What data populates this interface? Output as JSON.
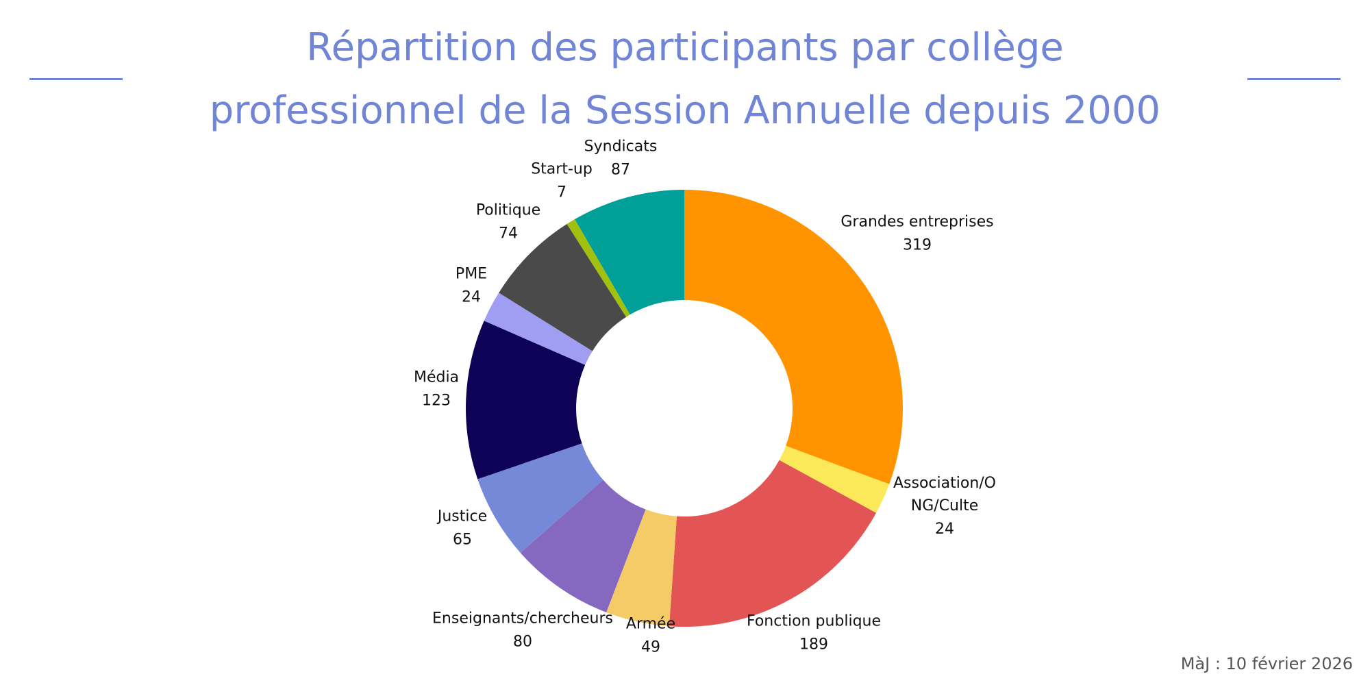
{
  "chart_data": {
    "type": "pie",
    "donut": true,
    "title": "Répartition des participants par collège professionnel de la Session Annuelle depuis 2000",
    "title_lines": [
      "Répartition des participants par collège",
      "professionnel de la Session Annuelle depuis 2000"
    ],
    "start": "top",
    "direction": "clockwise",
    "categories": [
      "Grandes entreprises",
      "Association/ONG/Culte",
      "Fonction publique",
      "Armée",
      "Enseignants/chercheurs",
      "Justice",
      "Média",
      "PME",
      "Politique",
      "Start-up",
      "Syndicats"
    ],
    "label_lines": [
      [
        "Grandes entreprises"
      ],
      [
        "Association/O",
        "NG/Culte"
      ],
      [
        "Fonction publique"
      ],
      [
        "Armée"
      ],
      [
        "Enseignants/chercheurs"
      ],
      [
        "Justice"
      ],
      [
        "Média"
      ],
      [
        "PME"
      ],
      [
        "Politique"
      ],
      [
        "Start-up"
      ],
      [
        "Syndicats"
      ]
    ],
    "values": [
      319,
      24,
      189,
      49,
      80,
      65,
      123,
      24,
      74,
      7,
      87
    ],
    "colors": [
      "#FF9400",
      "#FCE95A",
      "#E35555",
      "#F4CB67",
      "#8569C1",
      "#7589D8",
      "#0E0257",
      "#A09EF2",
      "#4A4A4A",
      "#A2C10E",
      "#009F98"
    ]
  },
  "footer": "MàJ : 10 février 2026",
  "colors": {
    "title": "#7185D6"
  }
}
